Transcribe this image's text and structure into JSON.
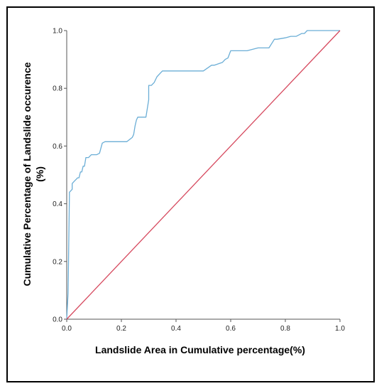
{
  "chart_data": {
    "type": "line",
    "xlabel": "Landslide Area in Cumulative percentage(%)",
    "ylabel_lines": [
      "Cumulative Percentage of Landslide occurence",
      "(%)"
    ],
    "xlim": [
      0,
      1
    ],
    "ylim": [
      0,
      1
    ],
    "x_ticks": [
      "0.0",
      "0.2",
      "0.4",
      "0.6",
      "0.8",
      "1.0"
    ],
    "y_ticks": [
      "0.0",
      "0.2",
      "0.4",
      "0.6",
      "0.8",
      "1.0"
    ],
    "grid": false,
    "series": [
      {
        "color": "#6baed6",
        "x": [
          0.0,
          0.005,
          0.005,
          0.01,
          0.01,
          0.015,
          0.02,
          0.02,
          0.025,
          0.03,
          0.035,
          0.04,
          0.045,
          0.05,
          0.055,
          0.06,
          0.065,
          0.07,
          0.075,
          0.08,
          0.085,
          0.09,
          0.1,
          0.11,
          0.12,
          0.13,
          0.14,
          0.14,
          0.16,
          0.18,
          0.2,
          0.22,
          0.24,
          0.245,
          0.25,
          0.255,
          0.26,
          0.27,
          0.28,
          0.29,
          0.3,
          0.3,
          0.31,
          0.32,
          0.33,
          0.34,
          0.35,
          0.36,
          0.38,
          0.42,
          0.47,
          0.5,
          0.53,
          0.54,
          0.57,
          0.58,
          0.59,
          0.6,
          0.62,
          0.66,
          0.7,
          0.74,
          0.76,
          0.77,
          0.8,
          0.82,
          0.84,
          0.85,
          0.86,
          0.87,
          0.88,
          0.9,
          0.93,
          0.96,
          0.99,
          1.0
        ],
        "y": [
          0.0,
          0.09,
          0.09,
          0.43,
          0.44,
          0.445,
          0.45,
          0.47,
          0.475,
          0.48,
          0.485,
          0.49,
          0.49,
          0.51,
          0.51,
          0.53,
          0.53,
          0.56,
          0.56,
          0.56,
          0.565,
          0.57,
          0.57,
          0.57,
          0.575,
          0.61,
          0.615,
          0.615,
          0.615,
          0.615,
          0.615,
          0.615,
          0.63,
          0.64,
          0.67,
          0.69,
          0.7,
          0.7,
          0.7,
          0.7,
          0.76,
          0.81,
          0.81,
          0.82,
          0.84,
          0.85,
          0.86,
          0.86,
          0.86,
          0.86,
          0.86,
          0.86,
          0.88,
          0.88,
          0.89,
          0.9,
          0.905,
          0.93,
          0.93,
          0.93,
          0.94,
          0.94,
          0.97,
          0.97,
          0.975,
          0.98,
          0.98,
          0.985,
          0.99,
          0.99,
          1.0,
          1.0,
          1.0,
          1.0,
          1.0,
          1.0
        ]
      },
      {
        "color": "#d6495e",
        "x": [
          0.0,
          1.0
        ],
        "y": [
          0.0,
          1.0
        ]
      }
    ]
  }
}
